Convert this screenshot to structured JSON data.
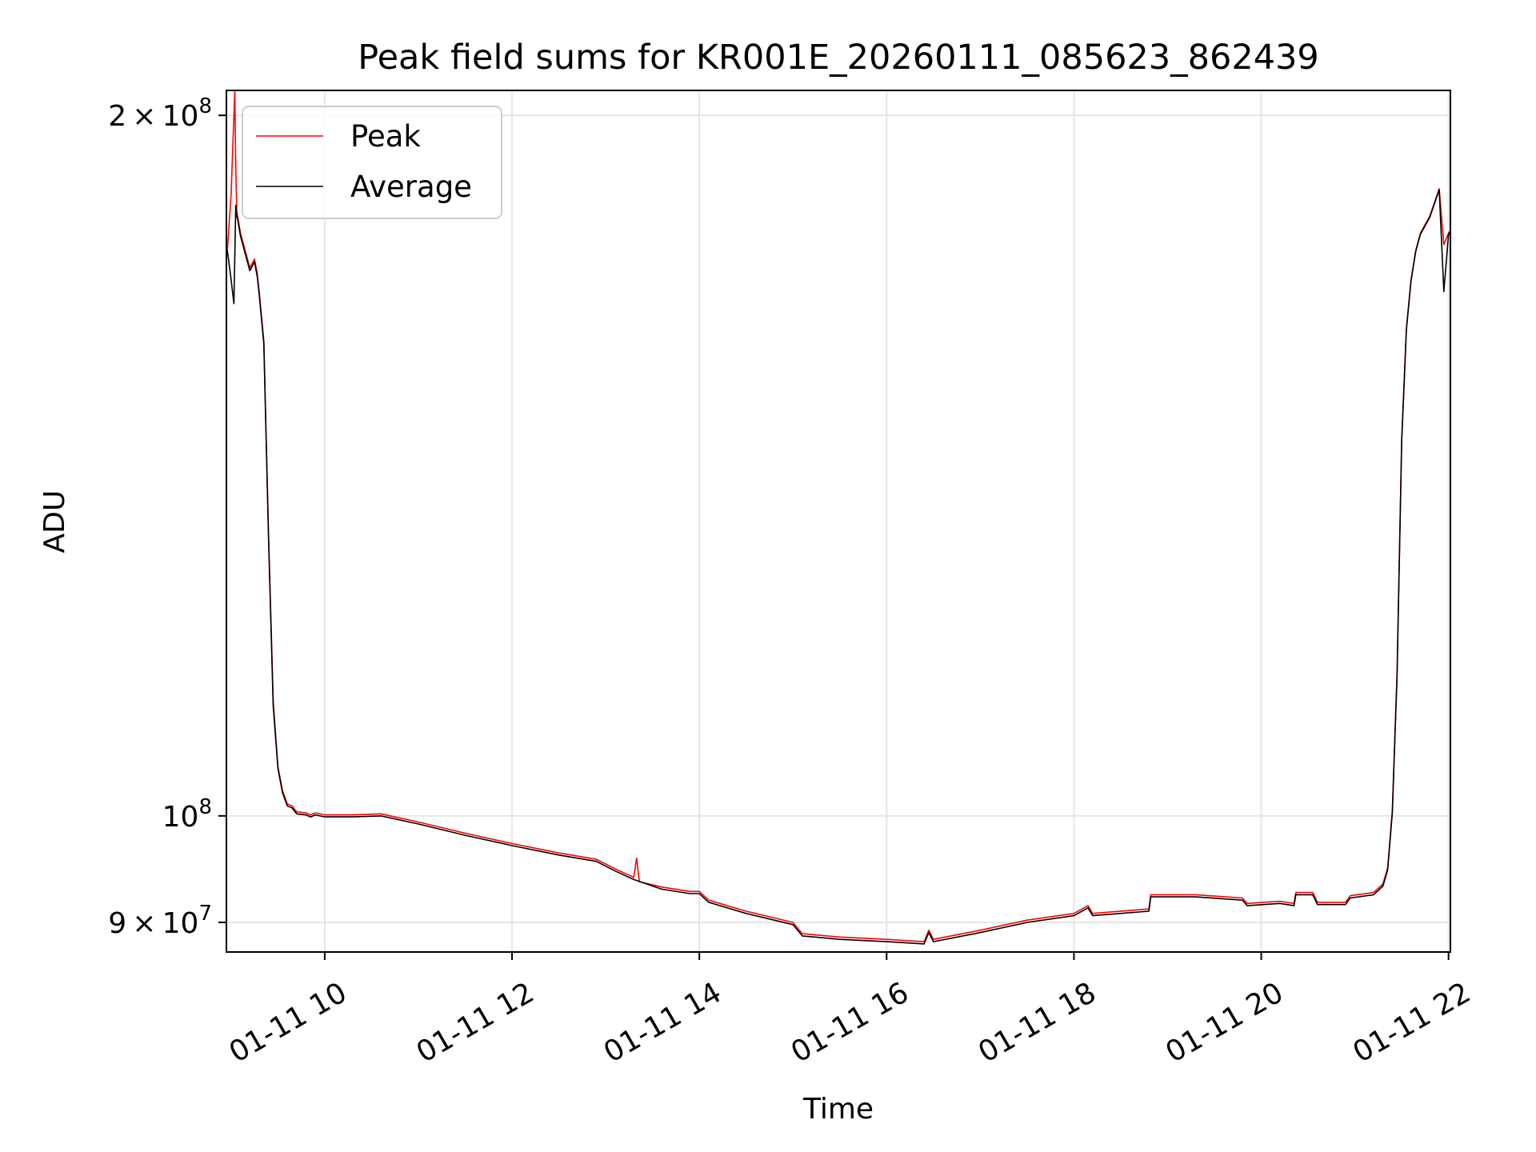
{
  "chart_data": {
    "type": "line",
    "title": "Peak field sums for KR001E_20260111_085623_862439",
    "xlabel": "Time",
    "ylabel": "ADU",
    "yscale": "log",
    "grid": true,
    "legend_position": "top-left",
    "xlim": [
      8.95,
      22.02
    ],
    "ylim": [
      87400000,
      205000000
    ],
    "x_ticks": [
      {
        "value": 10,
        "label": "01-11 10"
      },
      {
        "value": 12,
        "label": "01-11 12"
      },
      {
        "value": 14,
        "label": "01-11 14"
      },
      {
        "value": 16,
        "label": "01-11 16"
      },
      {
        "value": 18,
        "label": "01-11 18"
      },
      {
        "value": 20,
        "label": "01-11 20"
      },
      {
        "value": 22,
        "label": "01-11 22"
      }
    ],
    "y_ticks": [
      {
        "value": 200000000,
        "mantissa": "2",
        "times": "×",
        "base": "10",
        "exp": "8"
      },
      {
        "value": 100000000,
        "mantissa": "",
        "times": "",
        "base": "10",
        "exp": "8"
      },
      {
        "value": 90000000,
        "mantissa": "9",
        "times": "×",
        "base": "10",
        "exp": "7"
      }
    ],
    "series": [
      {
        "name": "Peak",
        "color": "#ff0000",
        "x": [
          8.96,
          9.0,
          9.04,
          9.05,
          9.06,
          9.07,
          9.1,
          9.2,
          9.25,
          9.28,
          9.3,
          9.35,
          9.4,
          9.45,
          9.5,
          9.55,
          9.6,
          9.65,
          9.7,
          9.8,
          9.85,
          9.9,
          10.0,
          10.3,
          10.6,
          11.0,
          11.5,
          12.0,
          12.5,
          12.9,
          13.1,
          13.3,
          13.33,
          13.36,
          13.6,
          13.9,
          14.0,
          14.1,
          14.5,
          15.0,
          15.1,
          15.5,
          16.0,
          16.4,
          16.45,
          16.5,
          17.0,
          17.5,
          18.0,
          18.15,
          18.2,
          18.8,
          18.82,
          19.3,
          19.8,
          19.85,
          20.2,
          20.35,
          20.37,
          20.55,
          20.6,
          20.9,
          20.95,
          21.2,
          21.3,
          21.35,
          21.4,
          21.45,
          21.5,
          21.55,
          21.6,
          21.65,
          21.7,
          21.8,
          21.9,
          21.95,
          22.0,
          22.02
        ],
        "y": [
          175000000,
          185000000,
          205000000,
          190000000,
          182000000,
          181000000,
          178000000,
          172000000,
          173500000,
          171000000,
          168000000,
          160000000,
          132000000,
          112000000,
          105000000,
          102500000,
          101200000,
          101000000,
          100400000,
          100300000,
          100100000,
          100300000,
          100100000,
          100100000,
          100200000,
          99400000,
          98300000,
          97300000,
          96400000,
          95800000,
          94900000,
          94100000,
          95900000,
          93700000,
          93200000,
          92800000,
          92800000,
          92000000,
          91000000,
          90000000,
          89000000,
          88700000,
          88500000,
          88300000,
          89300000,
          88500000,
          89300000,
          90200000,
          90800000,
          91500000,
          90800000,
          91200000,
          92500000,
          92500000,
          92200000,
          91700000,
          91900000,
          91700000,
          92700000,
          92700000,
          91800000,
          91800000,
          92400000,
          92700000,
          93500000,
          95000000,
          100500000,
          115000000,
          145000000,
          162000000,
          170000000,
          175000000,
          178000000,
          181000000,
          186000000,
          176000000,
          178000000,
          178500000
        ]
      },
      {
        "name": "Average",
        "color": "#000000",
        "x": [
          8.96,
          9.0,
          9.03,
          9.05,
          9.06,
          9.07,
          9.1,
          9.2,
          9.25,
          9.28,
          9.3,
          9.35,
          9.4,
          9.45,
          9.5,
          9.55,
          9.6,
          9.65,
          9.7,
          9.8,
          9.85,
          9.9,
          10.0,
          10.3,
          10.6,
          11.0,
          11.5,
          12.0,
          12.5,
          12.9,
          13.1,
          13.3,
          13.6,
          13.9,
          14.0,
          14.1,
          14.5,
          15.0,
          15.1,
          15.5,
          16.0,
          16.4,
          16.45,
          16.5,
          17.0,
          17.5,
          18.0,
          18.15,
          18.2,
          18.8,
          18.82,
          19.3,
          19.8,
          19.85,
          20.2,
          20.35,
          20.37,
          20.55,
          20.6,
          20.9,
          20.95,
          21.2,
          21.3,
          21.35,
          21.4,
          21.45,
          21.5,
          21.55,
          21.6,
          21.65,
          21.7,
          21.8,
          21.9,
          21.95,
          22.0,
          22.02
        ],
        "y": [
          175000000,
          170000000,
          166000000,
          183000000,
          181000000,
          180500000,
          177500000,
          171500000,
          173000000,
          170500000,
          167500000,
          159500000,
          131500000,
          111500000,
          104800000,
          102300000,
          101000000,
          100800000,
          100200000,
          100100000,
          99900000,
          100100000,
          99900000,
          99900000,
          100000000,
          99200000,
          98100000,
          97100000,
          96200000,
          95600000,
          94700000,
          93900000,
          93000000,
          92600000,
          92600000,
          91800000,
          90800000,
          89800000,
          88800000,
          88500000,
          88300000,
          88100000,
          89100000,
          88300000,
          89100000,
          90000000,
          90600000,
          91300000,
          90600000,
          91000000,
          92300000,
          92300000,
          92000000,
          91500000,
          91700000,
          91500000,
          92500000,
          92500000,
          91600000,
          91600000,
          92200000,
          92500000,
          93300000,
          94800000,
          100300000,
          114800000,
          144800000,
          161800000,
          169800000,
          174800000,
          177800000,
          180800000,
          185800000,
          168000000,
          177800000,
          178300000
        ]
      }
    ]
  }
}
